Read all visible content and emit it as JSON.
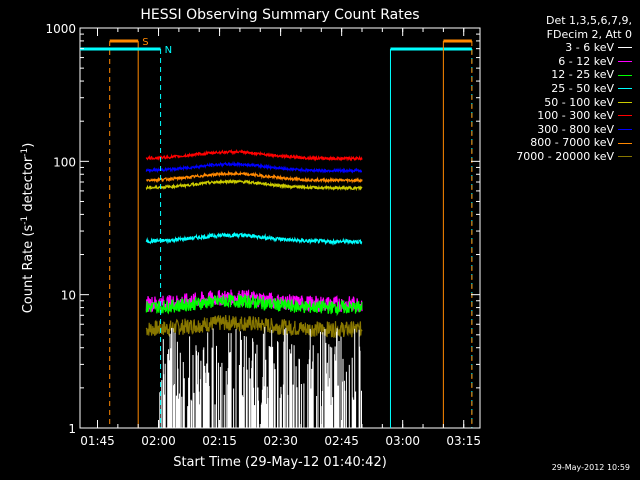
{
  "chart_data": {
    "type": "line",
    "title": "HESSI Observing Summary Count Rates",
    "xlabel": "Start Time (29-May-12 01:40:42)",
    "ylabel_main": "Count Rate (s",
    "ylabel_sup1": "-1",
    "ylabel_mid": " detector",
    "ylabel_sup2": "-1",
    "ylabel_end": ")",
    "yscale": "log",
    "ylim": [
      1,
      1000
    ],
    "xlim": [
      "01:40:42",
      "03:19:00"
    ],
    "x_ticks": [
      "01:45",
      "02:00",
      "02:15",
      "02:30",
      "02:45",
      "03:00",
      "03:15"
    ],
    "y_ticks": [
      "1",
      "10",
      "100",
      "1000"
    ],
    "data_interval": [
      "01:57:00",
      "02:50:00"
    ],
    "series": [
      {
        "name": "3 - 6 keV",
        "color": "#ffffff",
        "level": 2.2,
        "noise": 0.6
      },
      {
        "name": "6 - 12 keV",
        "color": "#ff00ff",
        "level": 8.5,
        "noise": 0.12
      },
      {
        "name": "12 - 25 keV",
        "color": "#00ff00",
        "level": 8.0,
        "noise": 0.1
      },
      {
        "name": "25 - 50 keV",
        "color": "#00ffff",
        "level": 25,
        "noise": 0.03
      },
      {
        "name": "50 - 100 keV",
        "color": "#cccc00",
        "level": 63,
        "noise": 0.02
      },
      {
        "name": "100 - 300 keV",
        "color": "#ff0000",
        "level": 105,
        "noise": 0.02
      },
      {
        "name": "300 - 800 keV",
        "color": "#0000ff",
        "level": 85,
        "noise": 0.02
      },
      {
        "name": "800 - 7000 keV",
        "color": "#ff8800",
        "level": 72,
        "noise": 0.02
      },
      {
        "name": "7000 - 20000 keV",
        "color": "#887700",
        "level": 5.5,
        "noise": 0.12
      }
    ],
    "markers": [
      {
        "label": "S",
        "color": "#ff8800",
        "start": "01:48:00",
        "end": "01:55:00",
        "style": "dashed-start"
      },
      {
        "label": "N",
        "color": "#00ffff",
        "start": "01:40:42",
        "end": "02:00:30",
        "style": "dashed-end"
      },
      {
        "label": "",
        "color": "#00ffff",
        "start": "02:57:00",
        "end": "03:17:00",
        "style": "dashed-end"
      },
      {
        "label": "",
        "color": "#ff8800",
        "start": "03:10:00",
        "end": "03:17:00",
        "style": "dashed-end"
      }
    ]
  },
  "legend": {
    "header1": "Det 1,3,5,6,7,9,",
    "header2": "FDecim 2, Att 0"
  },
  "footer": {
    "date": "29-May-2012 10:59"
  }
}
